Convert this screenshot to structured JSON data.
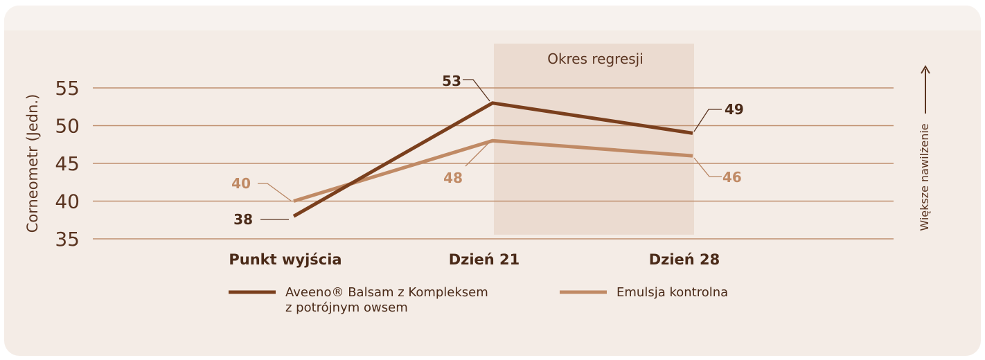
{
  "chart_data": {
    "type": "line",
    "ylabel": "Corneometr (Jedn.)",
    "right_label": "Większe nawilżenie",
    "ylim": [
      35,
      55
    ],
    "yticks": [
      "35",
      "40",
      "45",
      "50",
      "55"
    ],
    "categories": [
      "Punkt wyjścia",
      "Dzień 21",
      "Dzień 28"
    ],
    "shaded_region": {
      "label": "Okres regresji",
      "from": "Dzień 21",
      "to": "Dzień 28"
    },
    "series": [
      {
        "name": "Aveeno® Balsam z Kompleksem z potrójnym owsem",
        "legend_line1": "Aveeno® Balsam z Kompleksem",
        "legend_line2": "z potrójnym owsem",
        "values": [
          38,
          53,
          49
        ],
        "labels": [
          "38",
          "53",
          "49"
        ],
        "color": "#7a3f1d"
      },
      {
        "name": "Emulsja kontrolna",
        "legend_line1": "Emulsja kontrolna",
        "legend_line2": "",
        "values": [
          40,
          48,
          46
        ],
        "labels": [
          "40",
          "48",
          "46"
        ],
        "color": "#c08a65"
      }
    ],
    "grid": true
  }
}
